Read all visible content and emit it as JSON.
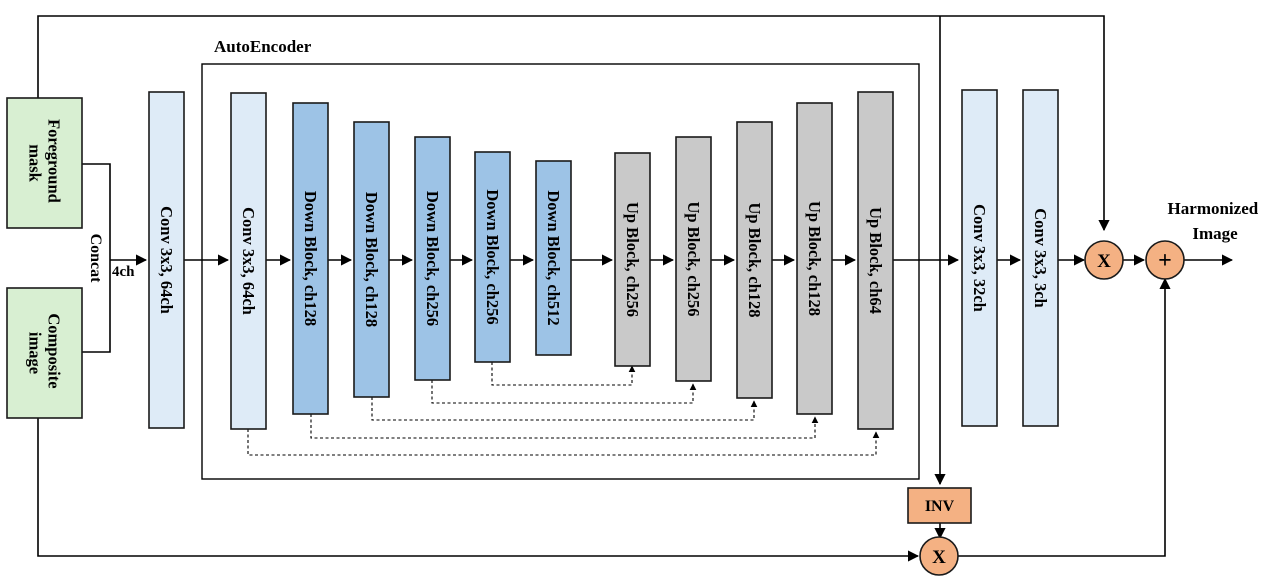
{
  "title": "AutoEncoder",
  "inputs": {
    "foreground_mask": "Foreground mask",
    "composite_image": "Composite image"
  },
  "concat_label": "Concat",
  "channel_label": "4ch",
  "blocks": {
    "conv_in": "Conv 3x3, 64ch",
    "conv_enc": "Conv 3x3, 64ch",
    "down1": "Down Block, ch128",
    "down2": "Down Block, ch128",
    "down3": "Down Block, ch256",
    "down4": "Down Block, ch256",
    "down5": "Down Block, ch512",
    "up1": "Up Block, ch256",
    "up2": "Up Block, ch256",
    "up3": "Up Block, ch128",
    "up4": "Up Block, ch128",
    "up5": "Up Block, ch64",
    "conv_out1": "Conv 3x3, 32ch",
    "conv_out2": "Conv 3x3, 3ch"
  },
  "inv_label": "INV",
  "ops": {
    "multiply": "X",
    "add": "+"
  },
  "output_label": [
    "Harmonized",
    "Image"
  ],
  "colors": {
    "input_green": "#d8efd2",
    "light_blue": "#deebf7",
    "mid_blue": "#9dc3e6",
    "gray": "#c9c9c9",
    "orange": "#f4b183"
  }
}
